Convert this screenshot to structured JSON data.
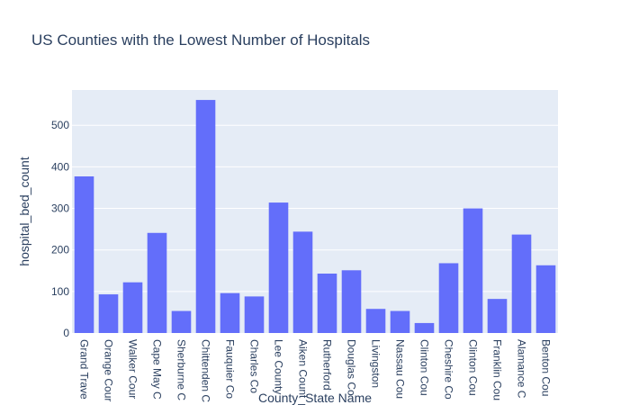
{
  "chart_data": {
    "type": "bar",
    "title": "US Counties with the Lowest Number of Hospitals",
    "xlabel": "County_State Name",
    "ylabel": "hospital_bed_count",
    "ylim": [
      0,
      585
    ],
    "yticks": [
      0,
      100,
      200,
      300,
      400,
      500
    ],
    "grid": true,
    "bar_color": "#636efa",
    "plot_bg": "#e5ecf6",
    "categories": [
      "Grand Trave",
      "Orange Cour",
      "Walker Cour",
      "Cape May C",
      "Sherburne C",
      "Chittenden C",
      "Fauquier Co",
      "Charles Co",
      "Lee County",
      "Aiken Count",
      "Rutherford",
      "Douglas Co",
      "Livingston",
      "Nassau Cou",
      "Clinton Cou",
      "Cheshire Co",
      "Clinton Cou",
      "Franklin Cou",
      "Alamance C",
      "Benton Cou"
    ],
    "values": [
      377,
      93,
      122,
      241,
      53,
      561,
      96,
      88,
      314,
      244,
      143,
      151,
      58,
      53,
      24,
      168,
      300,
      82,
      237,
      163
    ]
  }
}
